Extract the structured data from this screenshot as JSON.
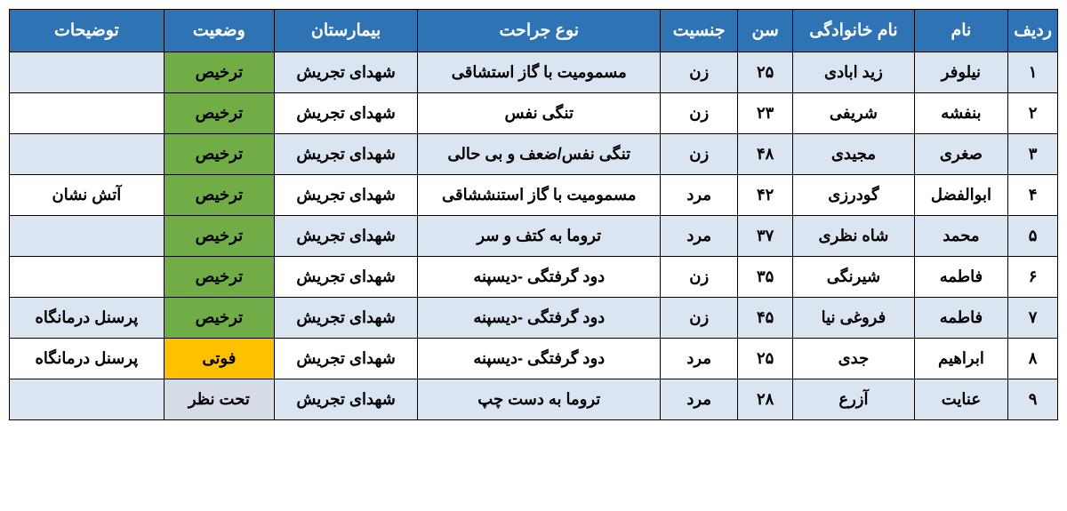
{
  "columns": [
    {
      "key": "row",
      "label": "ردیف",
      "class": "col-row"
    },
    {
      "key": "name",
      "label": "نام",
      "class": "col-name"
    },
    {
      "key": "family",
      "label": "نام خانوادگی",
      "class": "col-family"
    },
    {
      "key": "age",
      "label": "سن",
      "class": "col-age"
    },
    {
      "key": "gender",
      "label": "جنسیت",
      "class": "col-gender"
    },
    {
      "key": "injury",
      "label": "نوع جراحت",
      "class": "col-injury"
    },
    {
      "key": "hospital",
      "label": "بیمارستان",
      "class": "col-hospital"
    },
    {
      "key": "status",
      "label": "وضعیت",
      "class": "col-status"
    },
    {
      "key": "notes",
      "label": "توضیحات",
      "class": "col-notes"
    }
  ],
  "rows": [
    {
      "row": "۱",
      "name": "نیلوفر",
      "family": "زید ابادی",
      "age": "۲۵",
      "gender": "زن",
      "injury": "مسمومیت با گاز استشاقی",
      "hospital": "شهدای تجریش",
      "status": "ترخیص",
      "status_class": "status-green",
      "notes": ""
    },
    {
      "row": "۲",
      "name": "بنفشه",
      "family": "شریفی",
      "age": "۲۳",
      "gender": "زن",
      "injury": "تنگی نفس",
      "hospital": "شهدای تجریش",
      "status": "ترخیص",
      "status_class": "status-green",
      "notes": ""
    },
    {
      "row": "۳",
      "name": "صغری",
      "family": "مجیدی",
      "age": "۴۸",
      "gender": "زن",
      "injury": "تنگی نفس/ضعف و بی حالی",
      "hospital": "شهدای تجریش",
      "status": "ترخیص",
      "status_class": "status-green",
      "notes": ""
    },
    {
      "row": "۴",
      "name": "ابوالفضل",
      "family": "گودرزی",
      "age": "۴۲",
      "gender": "مرد",
      "injury": "مسمومیت با گاز استنششاقی",
      "hospital": "شهدای تجریش",
      "status": "ترخیص",
      "status_class": "status-green",
      "notes": "آتش نشان"
    },
    {
      "row": "۵",
      "name": "محمد",
      "family": "شاه نظری",
      "age": "۳۷",
      "gender": "مرد",
      "injury": "تروما به کتف و سر",
      "hospital": "شهدای تجریش",
      "status": "ترخیص",
      "status_class": "status-green",
      "notes": ""
    },
    {
      "row": "۶",
      "name": "فاطمه",
      "family": "شیرنگی",
      "age": "۳۵",
      "gender": "زن",
      "injury": "دود گرفتگی -دیسپنه",
      "hospital": "شهدای تجریش",
      "status": "ترخیص",
      "status_class": "status-green",
      "notes": ""
    },
    {
      "row": "۷",
      "name": "فاطمه",
      "family": "فروغی نیا",
      "age": "۴۵",
      "gender": "زن",
      "injury": "دود گرفتگی -دیسپنه",
      "hospital": "شهدای تجریش",
      "status": "ترخیص",
      "status_class": "status-green",
      "notes": "پرسنل درمانگاه"
    },
    {
      "row": "۸",
      "name": "ابراهیم",
      "family": "جدی",
      "age": "۲۵",
      "gender": "مرد",
      "injury": "دود گرفتگی -دیسپنه",
      "hospital": "شهدای تجریش",
      "status": "فوتی",
      "status_class": "status-orange",
      "notes": "پرسنل درمانگاه"
    },
    {
      "row": "۹",
      "name": "عنایت",
      "family": "آزرع",
      "age": "۲۸",
      "gender": "مرد",
      "injury": "تروما به دست چپ",
      "hospital": "شهدای تجریش",
      "status": "تحت نظر",
      "status_class": "status-lightblue",
      "notes": ""
    }
  ],
  "styling": {
    "header_bg": "#2e74b5",
    "header_color": "#ffffff",
    "row_odd_bg": "#dbe5f1",
    "row_even_bg": "#ffffff",
    "border_color": "#000000",
    "status_colors": {
      "status-green": "#70ad47",
      "status-orange": "#ffc000",
      "status-lightblue": "#d6dce5"
    },
    "font_size": 18,
    "header_font_size": 19,
    "font_weight": "bold"
  }
}
